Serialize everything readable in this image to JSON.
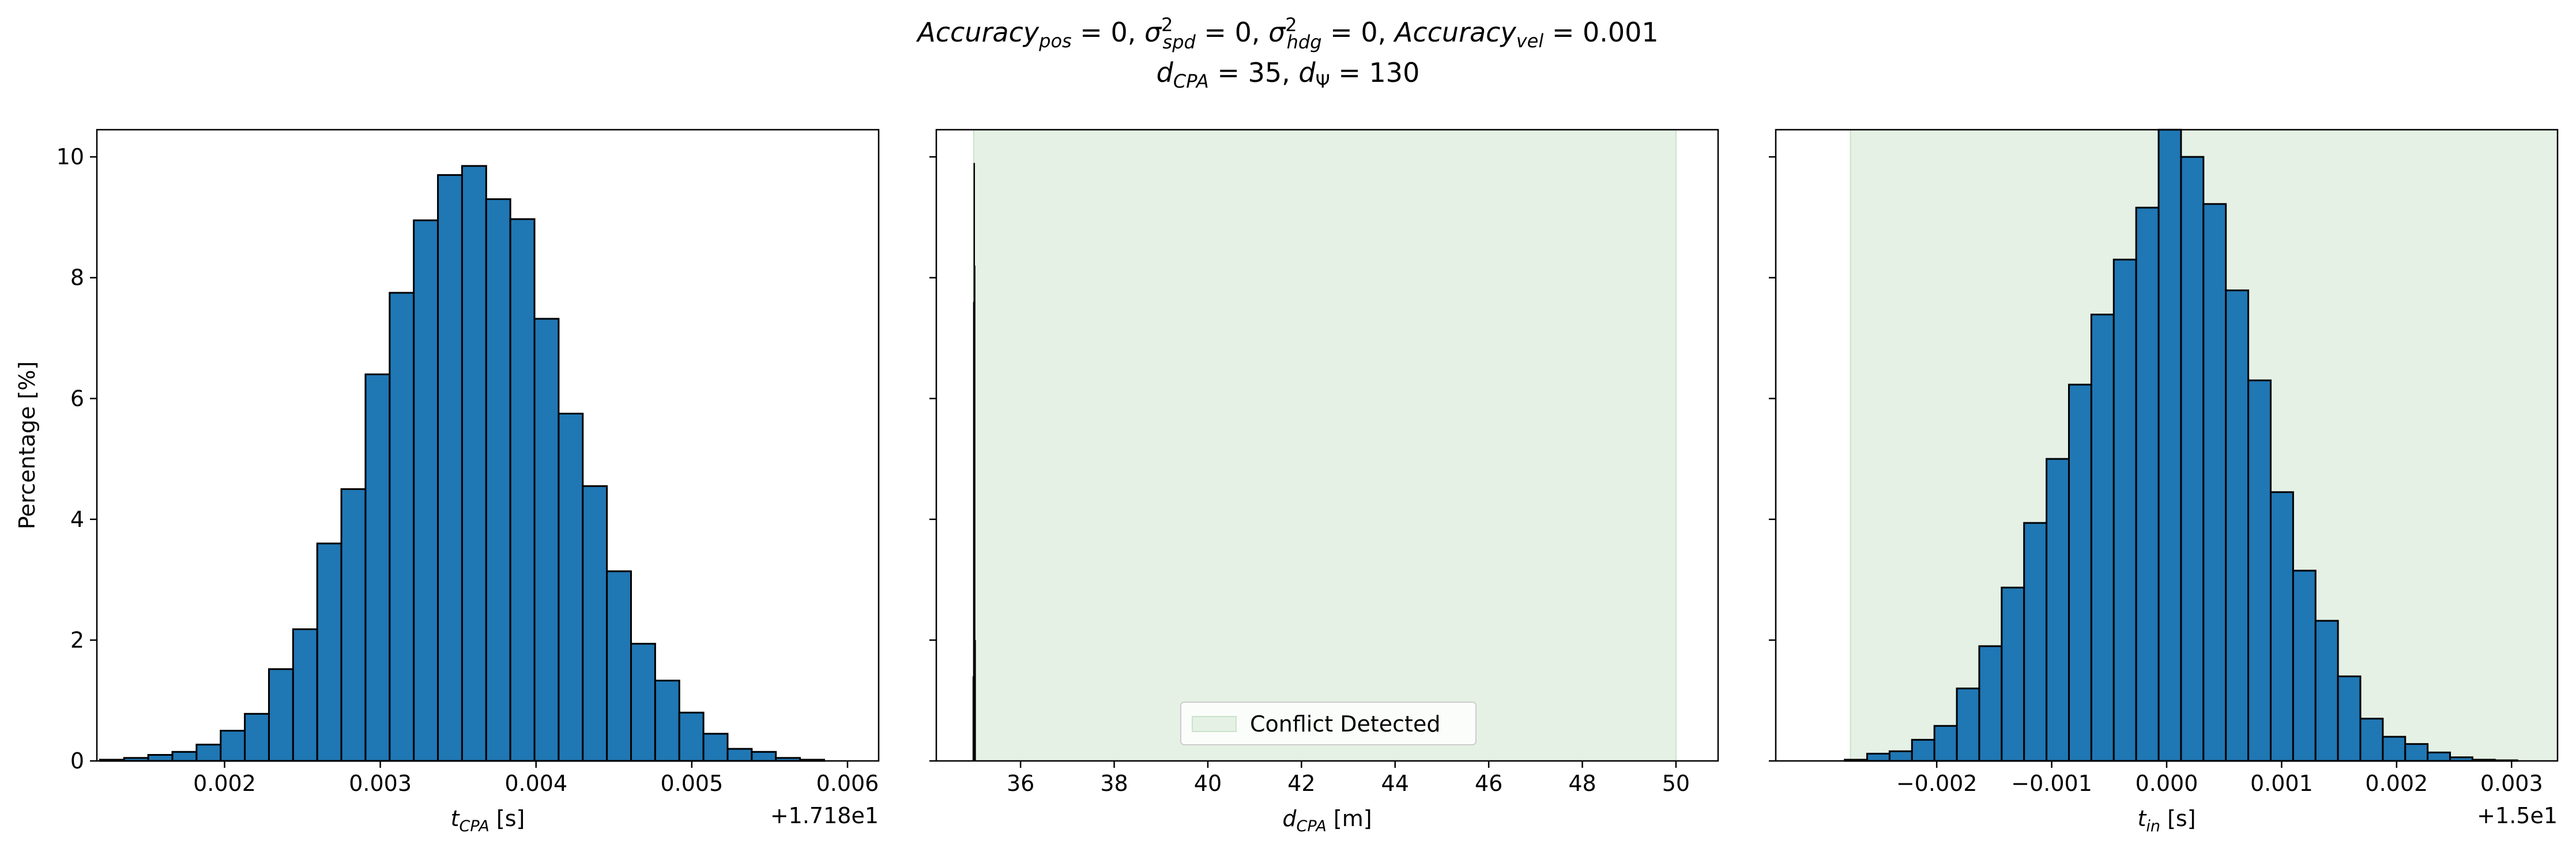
{
  "figure": {
    "title_line1": "Accuracy_pos = 0, σ²_spd = 0, σ²_hdg = 0, Accuracy_vel = 0.001",
    "title_line2": "d_CPA = 35, d_Ψ = 130"
  },
  "colors": {
    "bar_fill": "#1f77b4",
    "bar_edge": "#000000",
    "conflict_fill": "#e5f1e5",
    "conflict_edge": "#c9e3c9"
  },
  "chart_data": [
    {
      "type": "bar",
      "panel": "left",
      "title": "",
      "ylabel": "Percentage [%]",
      "xlabel": "t_CPA [s]",
      "offset_label": "+1.718e1",
      "xlim": [
        0.00118,
        0.0062
      ],
      "ylim": [
        0,
        10.45
      ],
      "xticks": [
        0.002,
        0.003,
        0.004,
        0.005,
        0.006
      ],
      "xtick_labels": [
        "0.002",
        "0.003",
        "0.004",
        "0.005",
        "0.006"
      ],
      "yticks": [
        0,
        2,
        4,
        6,
        8,
        10
      ],
      "ytick_labels": [
        "0",
        "2",
        "4",
        "6",
        "8",
        "10"
      ],
      "bin_start": 0.0012,
      "bin_width": 0.000155,
      "values": [
        0.02,
        0.05,
        0.1,
        0.15,
        0.27,
        0.5,
        0.78,
        1.52,
        2.18,
        3.6,
        4.5,
        6.4,
        7.75,
        8.95,
        9.7,
        9.85,
        9.3,
        8.97,
        7.32,
        5.75,
        4.55,
        3.14,
        1.94,
        1.33,
        0.8,
        0.45,
        0.2,
        0.15,
        0.05,
        0.02
      ]
    },
    {
      "type": "bar",
      "panel": "middle",
      "title": "",
      "xlabel": "d_CPA [m]",
      "xlim": [
        34.2,
        50.9
      ],
      "ylim": [
        0,
        10.45
      ],
      "xticks": [
        36,
        38,
        40,
        42,
        44,
        46,
        48,
        50
      ],
      "xtick_labels": [
        "36",
        "38",
        "40",
        "42",
        "44",
        "46",
        "48",
        "50"
      ],
      "yticks": [
        0,
        2,
        4,
        6,
        8,
        10
      ],
      "conflict_region": [
        35.0,
        50.0
      ],
      "legend": {
        "label": "Conflict Detected",
        "placement": "lower center"
      },
      "spike_x": [
        34.99,
        35.0,
        35.01,
        35.02,
        35.03
      ],
      "spike_values": [
        1.4,
        7.6,
        9.9,
        8.2,
        2.0
      ]
    },
    {
      "type": "bar",
      "panel": "right",
      "title": "",
      "xlabel": "t_in [s]",
      "offset_label": "+1.5e1",
      "xlim": [
        -0.0034,
        0.0034
      ],
      "ylim": [
        0,
        10.45
      ],
      "xticks": [
        -0.002,
        -0.001,
        0.0,
        0.001,
        0.002,
        0.003
      ],
      "xtick_labels": [
        "−0.002",
        "−0.001",
        "0.000",
        "0.001",
        "0.002",
        "0.003"
      ],
      "yticks": [
        0,
        2,
        4,
        6,
        8,
        10
      ],
      "conflict_region": [
        -0.00275,
        0.0034
      ],
      "bin_start": -0.0028,
      "bin_width": 0.000195,
      "values": [
        0.02,
        0.12,
        0.16,
        0.35,
        0.58,
        1.2,
        1.9,
        2.87,
        3.94,
        5.0,
        6.23,
        7.39,
        8.3,
        9.16,
        10.45,
        10.0,
        9.22,
        7.79,
        6.3,
        4.45,
        3.15,
        2.32,
        1.4,
        0.7,
        0.4,
        0.28,
        0.14,
        0.06,
        0.02,
        0.01
      ]
    }
  ]
}
